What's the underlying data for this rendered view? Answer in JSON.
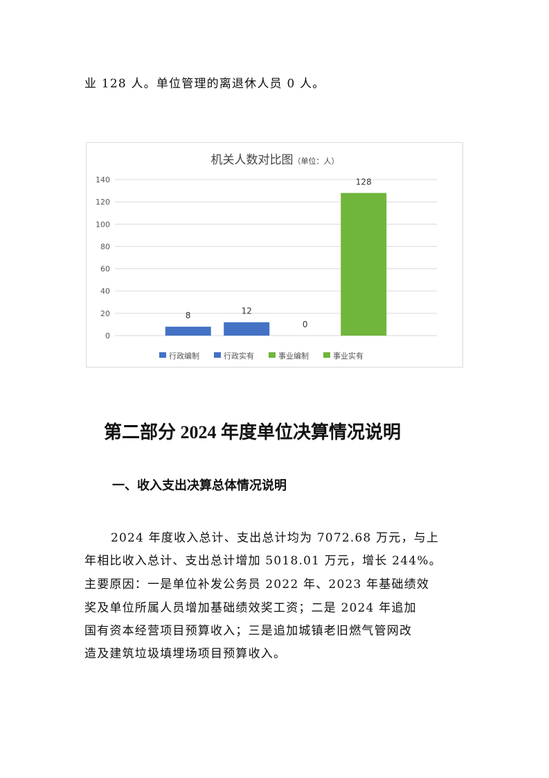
{
  "top_text": "业 128 人。单位管理的离退休人员 0 人。",
  "chart_data": {
    "type": "bar",
    "title": "机关人数对比图",
    "title_unit": "（单位：人）",
    "categories": [
      ""
    ],
    "series": [
      {
        "name": "行政编制",
        "values": [
          8
        ],
        "color": "#4472C4"
      },
      {
        "name": "行政实有",
        "values": [
          12
        ],
        "color": "#4472C4"
      },
      {
        "name": "事业编制",
        "values": [
          0
        ],
        "color": "#70B53C"
      },
      {
        "name": "事业实有",
        "values": [
          128
        ],
        "color": "#70B53C"
      }
    ],
    "ylim": [
      0,
      140
    ],
    "yticks": [
      0,
      20,
      40,
      60,
      80,
      100,
      120,
      140
    ],
    "grid": true,
    "legend": "bottom",
    "data_labels": true
  },
  "section_title": "第二部分  2024 年度单位决算情况说明",
  "subsection_title": "一、收入支出决算总体情况说明",
  "paragraph_lines": [
    "2024 年度收入总计、支出总计均为 7072.68 万元，与上",
    "年相比收入总计、支出总计增加 5018.01 万元，增长 244%。",
    "主要原因：一是单位补发公务员 2022 年、2023 年基础绩效",
    "奖及单位所属人员增加基础绩效奖工资；二是 2024 年追加",
    "国有资本经营项目预算收入；三是追加城镇老旧燃气管网改",
    "造及建筑垃圾填埋场项目预算收入。"
  ]
}
